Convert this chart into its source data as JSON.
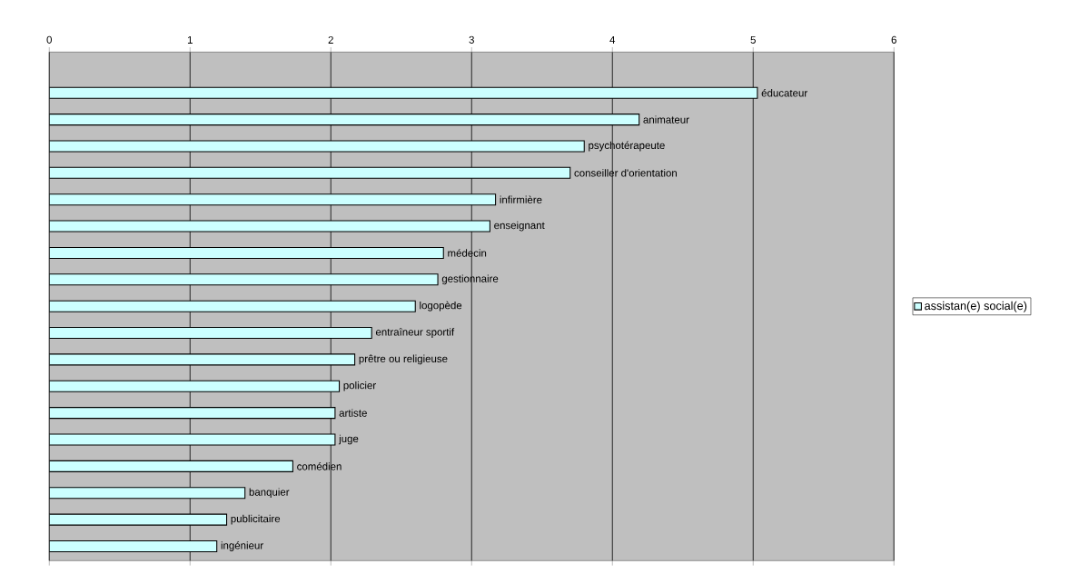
{
  "chart_data": {
    "type": "bar",
    "orientation": "horizontal",
    "categories": [
      "éducateur",
      "animateur",
      "psychotérapeute",
      "conseiller d'orientation",
      "infirmière",
      "enseignant",
      "médecin",
      "gestionnaire",
      "logopède",
      "entraîneur sportif",
      "prêtre ou religieuse",
      "policier",
      "artiste",
      "juge",
      "comédien",
      "banquier",
      "publicitaire",
      "ingénieur"
    ],
    "series": [
      {
        "name": "assistan(e) social(e)",
        "color": "#ccffff",
        "values": [
          5.03,
          4.19,
          3.8,
          3.7,
          3.17,
          3.13,
          2.8,
          2.76,
          2.6,
          2.29,
          2.17,
          2.06,
          2.03,
          2.03,
          1.73,
          1.39,
          1.26,
          1.19
        ]
      }
    ],
    "xlim": [
      0,
      6
    ],
    "xticks": [
      0,
      1,
      2,
      3,
      4,
      5,
      6
    ],
    "grid": "x",
    "legend": "right",
    "tick_labels": "x"
  }
}
